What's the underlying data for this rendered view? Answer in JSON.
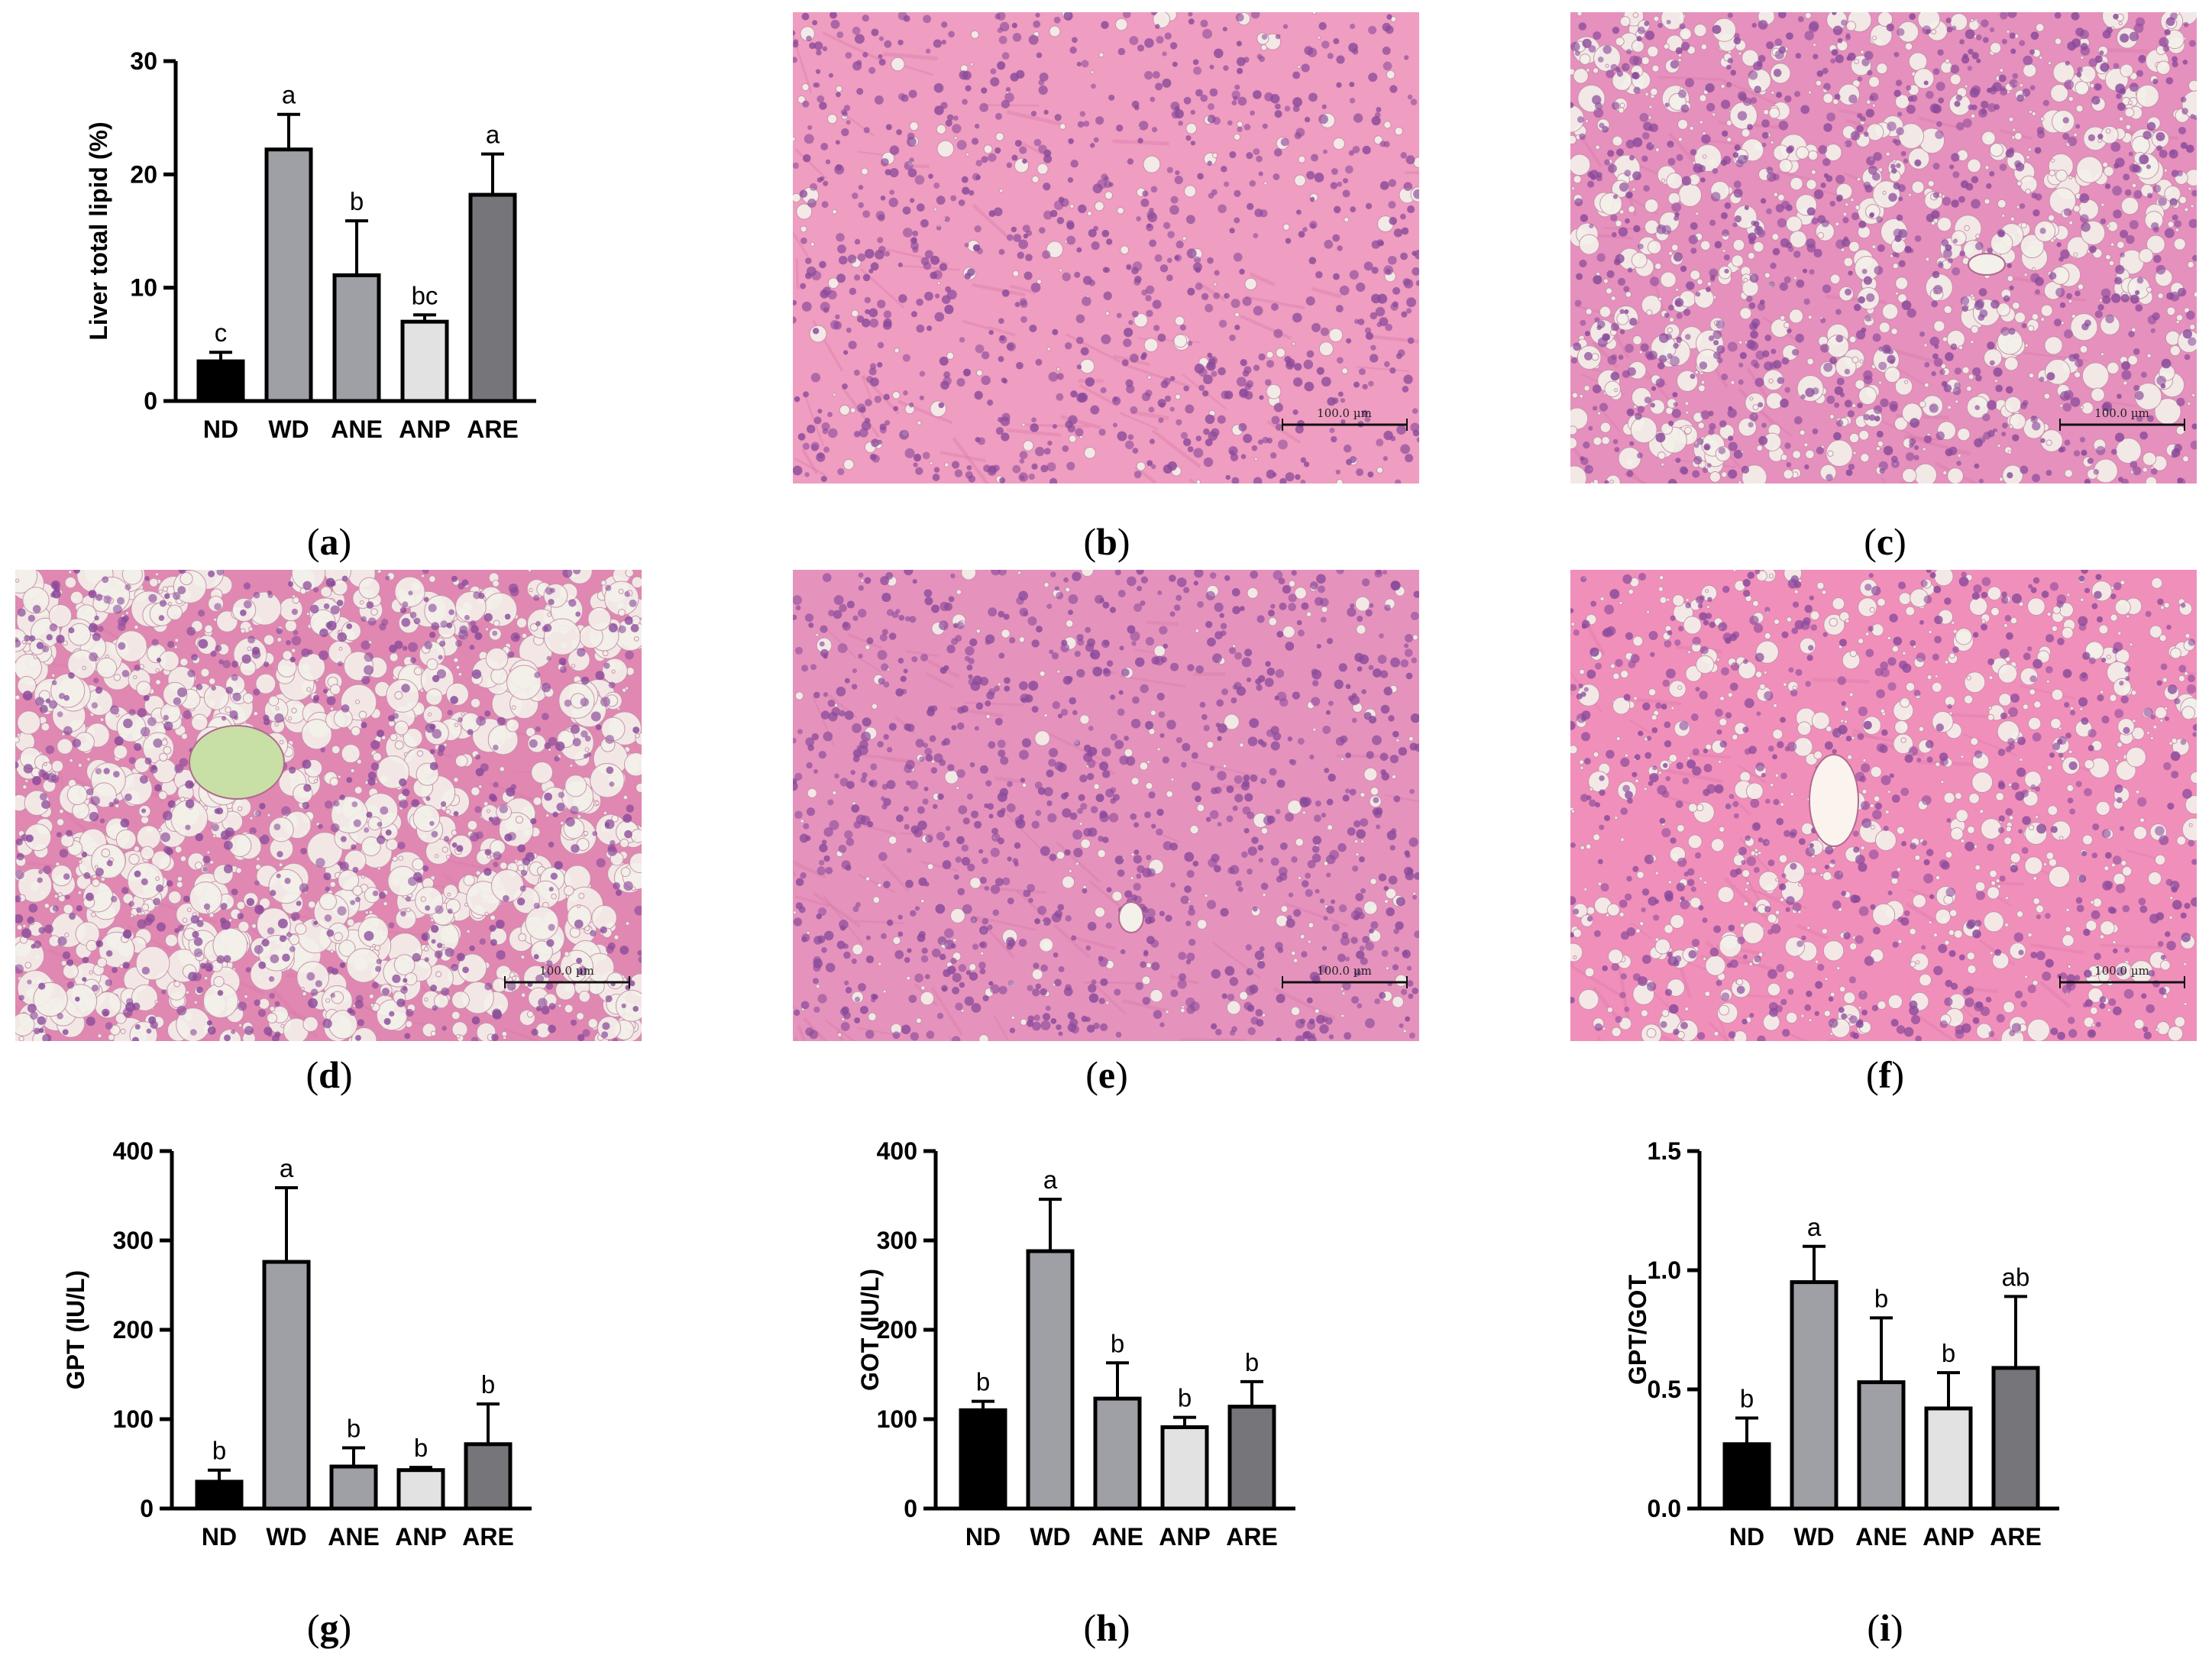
{
  "captions": {
    "a": "a",
    "b": "b",
    "c": "c",
    "d": "d",
    "e": "e",
    "f": "f",
    "g": "g",
    "h": "h",
    "i": "i"
  },
  "scale_bar_label": "100.0 µm",
  "histology_colors": {
    "background": "#e890b8",
    "nuclei": "#8a4a9a",
    "vacuole": "#f4f0ea",
    "vessel_d": "#c8dfa6",
    "vessel_f": "#fbf4ee"
  },
  "bar_colors": [
    "#000000",
    "#9ea0a6",
    "#9ea0a6",
    "#e2e2e2",
    "#76767a"
  ],
  "chart_data": [
    {
      "id": "a",
      "type": "bar",
      "categories": [
        "ND",
        "WD",
        "ANE",
        "ANP",
        "ARE"
      ],
      "values": [
        3.5,
        22.2,
        11.1,
        7.0,
        18.2
      ],
      "errors": [
        0.8,
        3.1,
        4.8,
        0.6,
        3.6
      ],
      "letters": [
        "c",
        "a",
        "b",
        "bc",
        "a"
      ],
      "ylabel": "Liver total lipid (%)",
      "ylim": [
        0,
        30
      ],
      "yticks": [
        "0",
        "10",
        "20",
        "30"
      ],
      "ytick_values": [
        0,
        10,
        20,
        30
      ]
    },
    {
      "id": "g",
      "type": "bar",
      "categories": [
        "ND",
        "WD",
        "ANE",
        "ANP",
        "ARE"
      ],
      "values": [
        30,
        276,
        47,
        43,
        72
      ],
      "errors": [
        13,
        83,
        21,
        3,
        45
      ],
      "letters": [
        "b",
        "a",
        "b",
        "b",
        "b"
      ],
      "ylabel": "GPT (IU/L)",
      "ylim": [
        0,
        400
      ],
      "yticks": [
        "0",
        "100",
        "200",
        "300",
        "400"
      ],
      "ytick_values": [
        0,
        100,
        200,
        300,
        400
      ]
    },
    {
      "id": "h",
      "type": "bar",
      "categories": [
        "ND",
        "WD",
        "ANE",
        "ANP",
        "ARE"
      ],
      "values": [
        110,
        288,
        123,
        91,
        114
      ],
      "errors": [
        10,
        58,
        40,
        11,
        28
      ],
      "letters": [
        "b",
        "a",
        "b",
        "b",
        "b"
      ],
      "ylabel": "GOT (IU/L)",
      "ylim": [
        0,
        400
      ],
      "yticks": [
        "0",
        "100",
        "200",
        "300",
        "400"
      ],
      "ytick_values": [
        0,
        100,
        200,
        300,
        400
      ]
    },
    {
      "id": "i",
      "type": "bar",
      "categories": [
        "ND",
        "WD",
        "ANE",
        "ANP",
        "ARE"
      ],
      "values": [
        0.27,
        0.95,
        0.53,
        0.42,
        0.59
      ],
      "errors": [
        0.11,
        0.15,
        0.27,
        0.15,
        0.3
      ],
      "letters": [
        "b",
        "a",
        "b",
        "b",
        "ab"
      ],
      "ylabel": "GPT/GOT",
      "ylim": [
        0,
        1.5
      ],
      "yticks": [
        "0.0",
        "0.5",
        "1.0",
        "1.5"
      ],
      "ytick_values": [
        0,
        0.5,
        1.0,
        1.5
      ]
    }
  ]
}
